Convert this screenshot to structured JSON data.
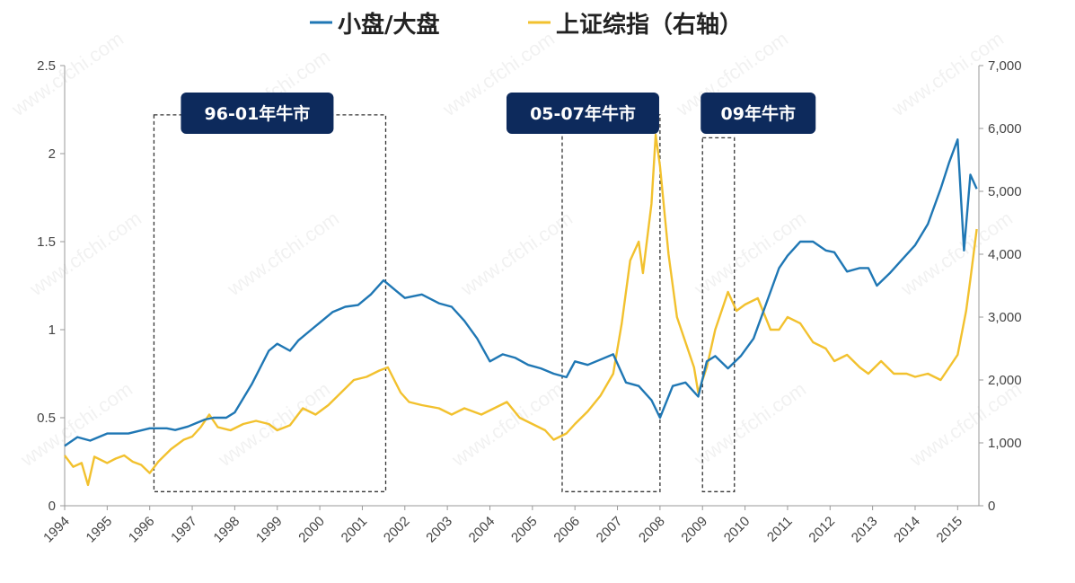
{
  "chart_data": {
    "type": "line",
    "title": "",
    "xlabel": "",
    "ylabel": "",
    "legend": {
      "position": "top-center"
    },
    "colors": {
      "small_large": "#1F77B4",
      "sse": "#F2C12E",
      "box_fill": "#0D2A5C",
      "axis": "#999999"
    },
    "x_ticks": [
      "1994",
      "1995",
      "1996",
      "1997",
      "1998",
      "1999",
      "2000",
      "2001",
      "2002",
      "2003",
      "2004",
      "2005",
      "2006",
      "2007",
      "2008",
      "2009",
      "2010",
      "2011",
      "2012",
      "2013",
      "2014",
      "2015"
    ],
    "y_left": {
      "range": [
        0,
        2.5
      ],
      "ticks": [
        "0",
        "0.5",
        "1",
        "1.5",
        "2",
        "2.5"
      ]
    },
    "y_right": {
      "range": [
        0,
        7000
      ],
      "ticks": [
        "0",
        "1,000",
        "2,000",
        "3,000",
        "4,000",
        "5,000",
        "6,000",
        "7,000"
      ]
    },
    "series": [
      {
        "name": "小盘/大盘",
        "axis": "left",
        "x": [
          1994.0,
          1994.3,
          1994.6,
          1995.0,
          1995.5,
          1996.0,
          1996.4,
          1996.6,
          1996.9,
          1997.1,
          1997.3,
          1997.5,
          1997.8,
          1998.0,
          1998.4,
          1998.8,
          1999.0,
          1999.3,
          1999.5,
          1999.8,
          2000.0,
          2000.3,
          2000.6,
          2000.9,
          2001.2,
          2001.5,
          2001.8,
          2002.0,
          2002.4,
          2002.8,
          2003.1,
          2003.4,
          2003.7,
          2004.0,
          2004.3,
          2004.6,
          2004.9,
          2005.2,
          2005.5,
          2005.8,
          2006.0,
          2006.3,
          2006.6,
          2006.9,
          2007.2,
          2007.5,
          2007.8,
          2008.0,
          2008.3,
          2008.6,
          2008.9,
          2009.1,
          2009.3,
          2009.6,
          2009.9,
          2010.2,
          2010.5,
          2010.8,
          2011.0,
          2011.3,
          2011.6,
          2011.9,
          2012.1,
          2012.4,
          2012.7,
          2012.9,
          2013.1,
          2013.4,
          2013.7,
          2014.0,
          2014.3,
          2014.6,
          2014.8,
          2015.0,
          2015.15,
          2015.3,
          2015.45
        ],
        "values": [
          0.34,
          0.39,
          0.37,
          0.41,
          0.41,
          0.44,
          0.44,
          0.43,
          0.45,
          0.47,
          0.49,
          0.5,
          0.5,
          0.53,
          0.69,
          0.88,
          0.92,
          0.88,
          0.94,
          1.0,
          1.04,
          1.1,
          1.13,
          1.14,
          1.2,
          1.28,
          1.22,
          1.18,
          1.2,
          1.15,
          1.13,
          1.05,
          0.95,
          0.82,
          0.86,
          0.84,
          0.8,
          0.78,
          0.75,
          0.73,
          0.82,
          0.8,
          0.83,
          0.86,
          0.7,
          0.68,
          0.6,
          0.5,
          0.68,
          0.7,
          0.62,
          0.82,
          0.85,
          0.78,
          0.85,
          0.95,
          1.15,
          1.35,
          1.42,
          1.5,
          1.5,
          1.45,
          1.44,
          1.33,
          1.35,
          1.35,
          1.25,
          1.32,
          1.4,
          1.48,
          1.6,
          1.8,
          1.95,
          2.08,
          1.45,
          1.88,
          1.8
        ]
      },
      {
        "name": "上证综指（右轴）",
        "axis": "right",
        "x": [
          1994.0,
          1994.2,
          1994.4,
          1994.55,
          1994.7,
          1995.0,
          1995.2,
          1995.4,
          1995.6,
          1995.8,
          1996.0,
          1996.2,
          1996.5,
          1996.8,
          1997.0,
          1997.2,
          1997.4,
          1997.6,
          1997.9,
          1998.2,
          1998.5,
          1998.8,
          1999.0,
          1999.3,
          1999.6,
          1999.9,
          2000.2,
          2000.5,
          2000.8,
          2001.1,
          2001.4,
          2001.6,
          2001.9,
          2002.1,
          2002.4,
          2002.8,
          2003.1,
          2003.4,
          2003.8,
          2004.1,
          2004.4,
          2004.7,
          2005.0,
          2005.3,
          2005.5,
          2005.8,
          2006.0,
          2006.3,
          2006.6,
          2006.9,
          2007.1,
          2007.3,
          2007.5,
          2007.6,
          2007.8,
          2007.9,
          2008.0,
          2008.2,
          2008.4,
          2008.6,
          2008.8,
          2008.9,
          2009.1,
          2009.3,
          2009.5,
          2009.6,
          2009.8,
          2010.0,
          2010.3,
          2010.6,
          2010.8,
          2011.0,
          2011.3,
          2011.6,
          2011.9,
          2012.1,
          2012.4,
          2012.7,
          2012.9,
          2013.2,
          2013.5,
          2013.8,
          2014.0,
          2014.3,
          2014.6,
          2014.8,
          2015.0,
          2015.2,
          2015.3,
          2015.45
        ],
        "values": [
          800,
          620,
          680,
          330,
          780,
          680,
          750,
          800,
          700,
          650,
          520,
          700,
          900,
          1050,
          1100,
          1250,
          1450,
          1250,
          1200,
          1300,
          1350,
          1300,
          1200,
          1280,
          1550,
          1450,
          1600,
          1800,
          2000,
          2050,
          2150,
          2200,
          1800,
          1650,
          1600,
          1550,
          1450,
          1550,
          1450,
          1550,
          1650,
          1400,
          1300,
          1200,
          1050,
          1150,
          1300,
          1500,
          1750,
          2100,
          2900,
          3900,
          4200,
          3700,
          4800,
          5900,
          5400,
          4000,
          3000,
          2600,
          2200,
          1800,
          2200,
          2800,
          3200,
          3400,
          3100,
          3200,
          3300,
          2800,
          2800,
          3000,
          2900,
          2600,
          2500,
          2300,
          2400,
          2200,
          2100,
          2300,
          2100,
          2100,
          2050,
          2100,
          2000,
          2200,
          2400,
          3100,
          3600,
          4400
        ]
      }
    ],
    "annotations": [
      {
        "label": "96-01年牛市",
        "x_start": 1996.1,
        "x_end": 2001.55,
        "y_top": 2.22
      },
      {
        "label": "05-07年牛市",
        "x_start": 2005.7,
        "x_end": 2008.0,
        "y_top": 2.22
      },
      {
        "label": "09年牛市",
        "x_start": 2009.0,
        "x_end": 2009.75,
        "y_top": 2.09
      }
    ]
  },
  "watermark": "www.cfchi.com"
}
